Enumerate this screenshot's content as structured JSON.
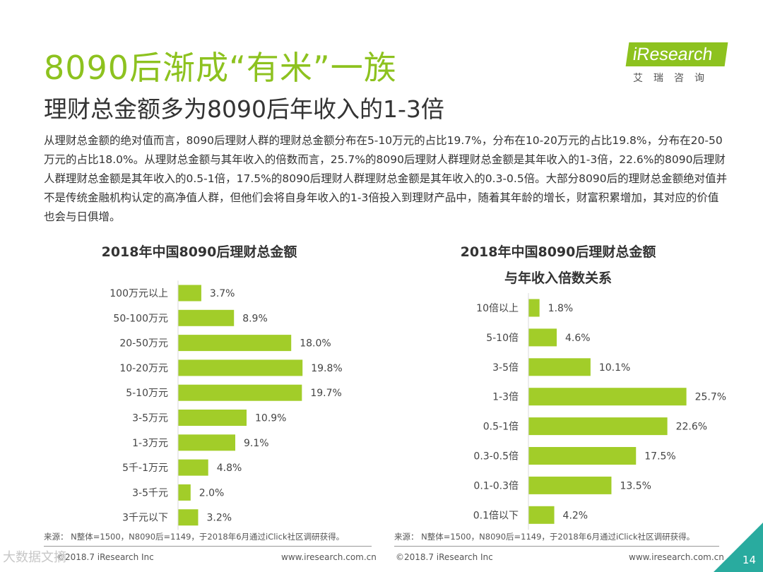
{
  "title": "8090后渐成“有米”一族",
  "subtitle": "理财总金额多为8090后年收入的1-3倍",
  "logo": {
    "brand": "iResearch",
    "cn": "艾瑞咨询"
  },
  "paragraph": "从理财总金额的绝对值而言，8090后理财人群的理财总金额分布在5-10万元的占比19.7%，分布在10-20万元的占比19.8%，分布在20-50万元的占比18.0%。从理财总金额与其年收入的倍数而言，25.7%的8090后理财人群理财总金额是其年收入的1-3倍，22.6%的8090后理财人群理财总金额是其年收入的0.5-1倍，17.5%的8090后理财人群理财总金额是其年收入的0.3-0.5倍。大部分8090后的理财总金额绝对值并不是传统金融机构认定的高净值人群，但他们会将自身年收入的1-3倍投入到理财产品中，随着其年龄的增长，财富积累增加，其对应的价值也会与日俱增。",
  "colors": {
    "bar": "#a2cd29",
    "accent": "#8dc21f",
    "corner": "#29ab9f"
  },
  "chart_data": [
    {
      "type": "bar",
      "orientation": "horizontal",
      "title": "2018年中国8090后理财总金额",
      "categories": [
        "100万元以上",
        "50-100万元",
        "20-50万元",
        "10-20万元",
        "5-10万元",
        "3-5万元",
        "1-3万元",
        "5千-1万元",
        "3-5千元",
        "3千元以下"
      ],
      "values": [
        3.7,
        8.9,
        18.0,
        19.8,
        19.7,
        10.9,
        9.1,
        4.8,
        2.0,
        3.2
      ],
      "labels": [
        "3.7%",
        "8.9%",
        "18.0%",
        "19.8%",
        "19.7%",
        "10.9%",
        "9.1%",
        "4.8%",
        "2.0%",
        "3.2%"
      ],
      "unit": "%"
    },
    {
      "type": "bar",
      "orientation": "horizontal",
      "title_line1": "2018年中国8090后理财总金额",
      "title_line2": "与年收入倍数关系",
      "categories": [
        "10倍以上",
        "5-10倍",
        "3-5倍",
        "1-3倍",
        "0.5-1倍",
        "0.3-0.5倍",
        "0.1-0.3倍",
        "0.1倍以下"
      ],
      "values": [
        1.8,
        4.6,
        10.1,
        25.7,
        22.6,
        17.5,
        13.5,
        4.2
      ],
      "labels": [
        "1.8%",
        "4.6%",
        "10.1%",
        "25.7%",
        "22.6%",
        "17.5%",
        "13.5%",
        "4.2%"
      ],
      "unit": "%"
    }
  ],
  "source_left": "来源： N整体=1500，N8090后=1149，于2018年6月通过iClick社区调研获得。",
  "source_right": "来源： N整体=1500，N8090后=1149，于2018年6月通过iClick社区调研获得。",
  "footer": {
    "left_copyright": "©2018.7 iResearch Inc",
    "left_url": "www.iresearch.com.cn",
    "right_copyright": "©2018.7 iResearch Inc",
    "right_url": "www.iresearch.com.cn",
    "page": "14",
    "watermark": "大数据文摘"
  }
}
